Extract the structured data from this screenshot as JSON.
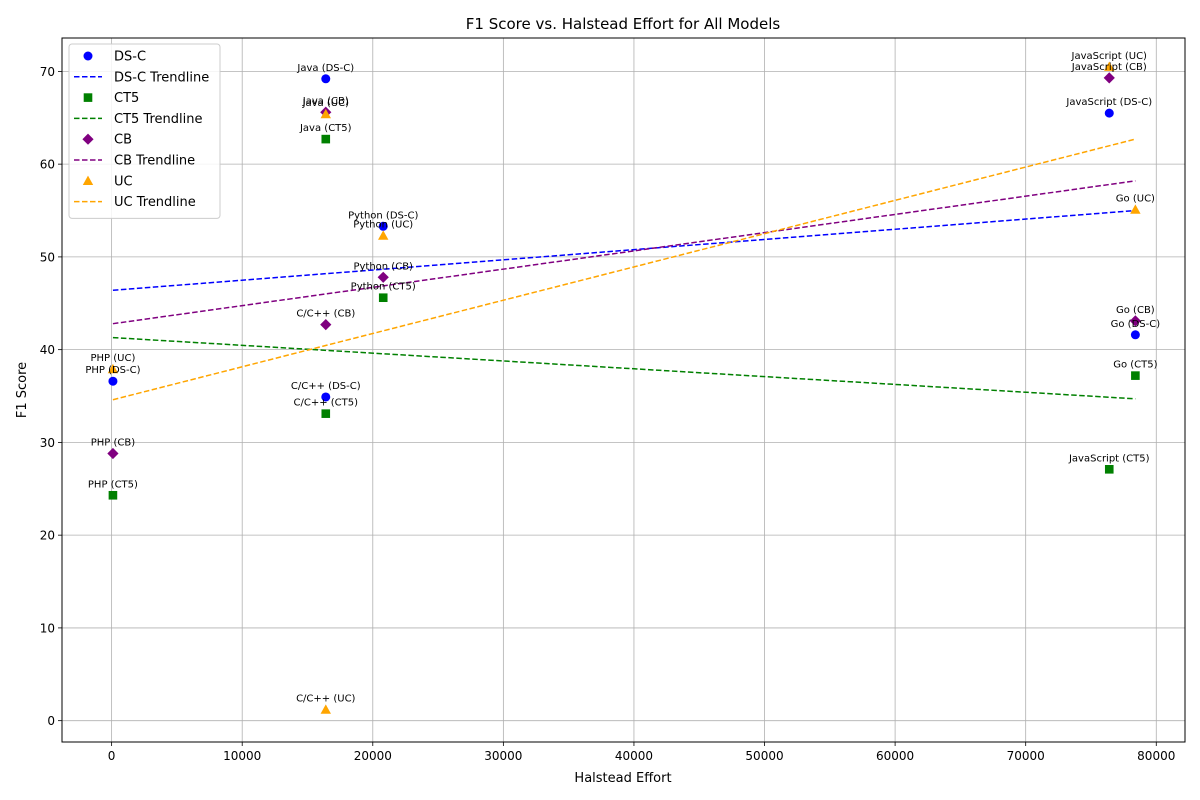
{
  "chart_data": {
    "type": "scatter",
    "title": "F1 Score vs. Halstead Effort for All Models",
    "xlabel": "Halstead Effort",
    "ylabel": "F1 Score",
    "xlim": [
      -3800,
      82200
    ],
    "ylim": [
      -2.3,
      73.6
    ],
    "xticks": [
      0,
      10000,
      20000,
      30000,
      40000,
      50000,
      60000,
      70000,
      80000
    ],
    "yticks": [
      0,
      10,
      20,
      30,
      40,
      50,
      60,
      70
    ],
    "grid": true,
    "legend_position": "top-left",
    "series": [
      {
        "name": "DS-C",
        "marker": "circle",
        "color": "#0000ff",
        "trend_label": "DS-C Trendline",
        "trend": {
          "x": [
            100,
            78400
          ],
          "y": [
            46.4,
            55.0
          ]
        },
        "points": [
          {
            "label": "PHP (DS-C)",
            "x": 100,
            "y": 36.6
          },
          {
            "label": "C/C++ (DS-C)",
            "x": 16400,
            "y": 34.9
          },
          {
            "label": "Java (DS-C)",
            "x": 16400,
            "y": 69.2
          },
          {
            "label": "Python (DS-C)",
            "x": 20800,
            "y": 53.3
          },
          {
            "label": "JavaScript (DS-C)",
            "x": 76400,
            "y": 65.5
          },
          {
            "label": "Go (DS-C)",
            "x": 78400,
            "y": 41.6
          }
        ]
      },
      {
        "name": "CT5",
        "marker": "square",
        "color": "#008000",
        "trend_label": "CT5 Trendline",
        "trend": {
          "x": [
            100,
            78400
          ],
          "y": [
            41.3,
            34.7
          ]
        },
        "points": [
          {
            "label": "PHP (CT5)",
            "x": 100,
            "y": 24.3
          },
          {
            "label": "C/C++ (CT5)",
            "x": 16400,
            "y": 33.1
          },
          {
            "label": "Java (CT5)",
            "x": 16400,
            "y": 62.7
          },
          {
            "label": "Python (CT5)",
            "x": 20800,
            "y": 45.6
          },
          {
            "label": "JavaScript (CT5)",
            "x": 76400,
            "y": 27.1
          },
          {
            "label": "Go (CT5)",
            "x": 78400,
            "y": 37.2
          }
        ]
      },
      {
        "name": "CB",
        "marker": "diamond",
        "color": "#800080",
        "trend_label": "CB Trendline",
        "trend": {
          "x": [
            100,
            78400
          ],
          "y": [
            42.8,
            58.2
          ]
        },
        "points": [
          {
            "label": "PHP (CB)",
            "x": 100,
            "y": 28.8
          },
          {
            "label": "C/C++ (CB)",
            "x": 16400,
            "y": 42.7
          },
          {
            "label": "Java (CB)",
            "x": 16400,
            "y": 65.6
          },
          {
            "label": "Python (CB)",
            "x": 20800,
            "y": 47.8
          },
          {
            "label": "JavaScript (CB)",
            "x": 76400,
            "y": 69.3
          },
          {
            "label": "Go (CB)",
            "x": 78400,
            "y": 43.1
          }
        ]
      },
      {
        "name": "UC",
        "marker": "triangle",
        "color": "#ffa500",
        "trend_label": "UC Trendline",
        "trend": {
          "x": [
            100,
            78400
          ],
          "y": [
            34.6,
            62.7
          ]
        },
        "points": [
          {
            "label": "PHP (UC)",
            "x": 100,
            "y": 37.9
          },
          {
            "label": "C/C++ (UC)",
            "x": 16400,
            "y": 1.2
          },
          {
            "label": "Java (UC)",
            "x": 16400,
            "y": 65.4
          },
          {
            "label": "Python (UC)",
            "x": 20800,
            "y": 52.3
          },
          {
            "label": "JavaScript (UC)",
            "x": 76400,
            "y": 70.5
          },
          {
            "label": "Go (UC)",
            "x": 78400,
            "y": 55.1
          }
        ]
      }
    ]
  }
}
